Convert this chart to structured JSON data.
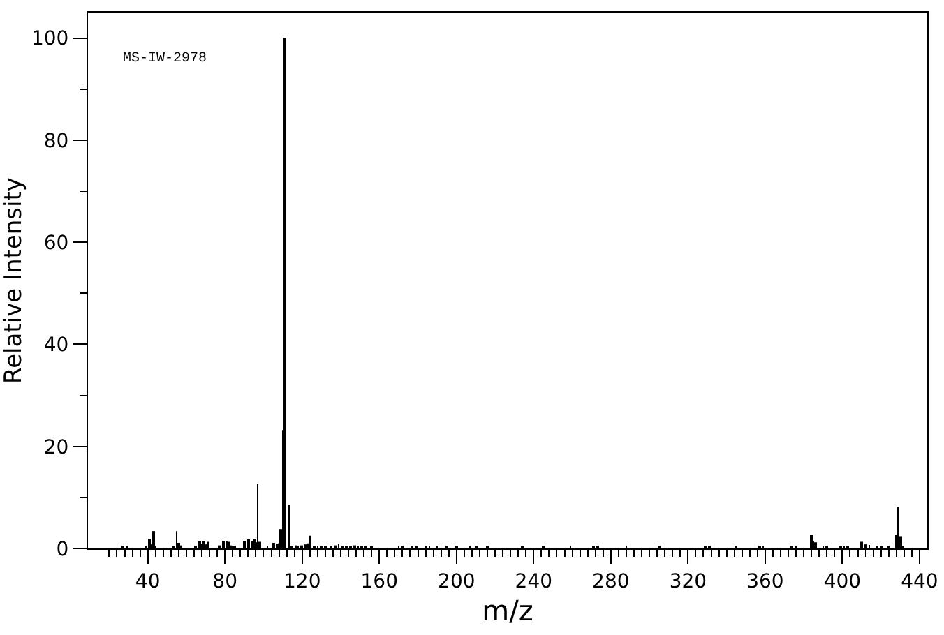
{
  "chart_data": {
    "type": "bar",
    "xlabel": "m/z",
    "ylabel": "Relative Intensity",
    "annotations": [
      "MS-IW-2978"
    ],
    "color": "#000000",
    "x": [
      27,
      29,
      39,
      41,
      42,
      43,
      44,
      53,
      55,
      56,
      57,
      65,
      67,
      68,
      69,
      70,
      71,
      77,
      79,
      81,
      82,
      83,
      84,
      85,
      90,
      92,
      94,
      95,
      96,
      97,
      98,
      102,
      105,
      107,
      108,
      109,
      110,
      111,
      113,
      114,
      115,
      117,
      118,
      120,
      122,
      123,
      124,
      126,
      128,
      130,
      132,
      135,
      137,
      139,
      141,
      143,
      145,
      147,
      149,
      151,
      153,
      156,
      170,
      172,
      177,
      179,
      184,
      186,
      190,
      195,
      200,
      207,
      210,
      216,
      234,
      245,
      259,
      271,
      273,
      288,
      305,
      329,
      331,
      345,
      357,
      359,
      374,
      376,
      384,
      385,
      386,
      390,
      392,
      399,
      401,
      403,
      410,
      412,
      414,
      418,
      420,
      424,
      428,
      429,
      430,
      431
    ],
    "values": [
      0.4,
      0.5,
      0.5,
      1.9,
      0.8,
      3.4,
      0.5,
      0.5,
      3.4,
      1.1,
      0.6,
      0.5,
      1.5,
      0.9,
      1.5,
      0.8,
      1.3,
      0.6,
      1.5,
      1.5,
      1.3,
      0.6,
      0.4,
      0.4,
      1.5,
      1.8,
      1.5,
      1.9,
      1.2,
      12.6,
      1.3,
      0.5,
      1.1,
      0.9,
      1.0,
      3.8,
      23.2,
      100,
      8.6,
      0.5,
      0.5,
      0.6,
      0.5,
      0.6,
      0.8,
      1.0,
      2.5,
      0.5,
      0.5,
      0.5,
      0.5,
      0.5,
      0.6,
      0.9,
      0.5,
      0.5,
      0.5,
      0.6,
      0.4,
      0.4,
      0.3,
      0.3,
      0.3,
      0.3,
      0.3,
      0.3,
      0.3,
      0.3,
      0.3,
      0.3,
      0.3,
      0.3,
      0.3,
      0.3,
      0.3,
      0.3,
      0.3,
      0.3,
      0.3,
      0.3,
      0.3,
      0.3,
      0.3,
      0.3,
      0.3,
      0.3,
      0.3,
      0.3,
      2.7,
      1.4,
      1.2,
      0.3,
      0.3,
      0.3,
      0.3,
      0.3,
      1.3,
      0.8,
      0.7,
      0.3,
      0.3,
      0.3,
      2.7,
      8.2,
      2.4,
      0.4
    ],
    "xlim": [
      9,
      444
    ],
    "ylim": [
      0,
      105
    ],
    "xticks": [
      {
        "value": 20,
        "label": null
      },
      {
        "value": 24,
        "label": null
      },
      {
        "value": 28,
        "label": null
      },
      {
        "value": 32,
        "label": null
      },
      {
        "value": 36,
        "label": null
      },
      40,
      {
        "value": 44,
        "label": null
      },
      {
        "value": 48,
        "label": null
      },
      {
        "value": 52,
        "label": null
      },
      {
        "value": 56,
        "label": null
      },
      {
        "value": 60,
        "label": null
      },
      {
        "value": 64,
        "label": null
      },
      {
        "value": 68,
        "label": null
      },
      {
        "value": 72,
        "label": null
      },
      {
        "value": 76,
        "label": null
      },
      80,
      {
        "value": 84,
        "label": null
      },
      {
        "value": 88,
        "label": null
      },
      {
        "value": 92,
        "label": null
      },
      {
        "value": 96,
        "label": null
      },
      {
        "value": 100,
        "label": null
      },
      {
        "value": 104,
        "label": null
      },
      {
        "value": 108,
        "label": null
      },
      {
        "value": 112,
        "label": null
      },
      {
        "value": 116,
        "label": null
      },
      120,
      {
        "value": 124,
        "label": null
      },
      {
        "value": 128,
        "label": null
      },
      {
        "value": 132,
        "label": null
      },
      {
        "value": 136,
        "label": null
      },
      {
        "value": 140,
        "label": null
      },
      {
        "value": 144,
        "label": null
      },
      {
        "value": 148,
        "label": null
      },
      {
        "value": 152,
        "label": null
      },
      {
        "value": 156,
        "label": null
      },
      160,
      {
        "value": 164,
        "label": null
      },
      {
        "value": 168,
        "label": null
      },
      {
        "value": 172,
        "label": null
      },
      {
        "value": 176,
        "label": null
      },
      {
        "value": 180,
        "label": null
      },
      {
        "value": 184,
        "label": null
      },
      {
        "value": 188,
        "label": null
      },
      {
        "value": 192,
        "label": null
      },
      {
        "value": 196,
        "label": null
      },
      200,
      {
        "value": 204,
        "label": null
      },
      {
        "value": 208,
        "label": null
      },
      {
        "value": 212,
        "label": null
      },
      {
        "value": 216,
        "label": null
      },
      {
        "value": 220,
        "label": null
      },
      {
        "value": 224,
        "label": null
      },
      {
        "value": 228,
        "label": null
      },
      {
        "value": 232,
        "label": null
      },
      {
        "value": 236,
        "label": null
      },
      240,
      {
        "value": 244,
        "label": null
      },
      {
        "value": 248,
        "label": null
      },
      {
        "value": 252,
        "label": null
      },
      {
        "value": 256,
        "label": null
      },
      {
        "value": 260,
        "label": null
      },
      {
        "value": 264,
        "label": null
      },
      {
        "value": 268,
        "label": null
      },
      {
        "value": 272,
        "label": null
      },
      {
        "value": 276,
        "label": null
      },
      280,
      {
        "value": 284,
        "label": null
      },
      {
        "value": 288,
        "label": null
      },
      {
        "value": 292,
        "label": null
      },
      {
        "value": 296,
        "label": null
      },
      {
        "value": 300,
        "label": null
      },
      {
        "value": 304,
        "label": null
      },
      {
        "value": 308,
        "label": null
      },
      {
        "value": 312,
        "label": null
      },
      {
        "value": 316,
        "label": null
      },
      320,
      {
        "value": 324,
        "label": null
      },
      {
        "value": 328,
        "label": null
      },
      {
        "value": 332,
        "label": null
      },
      {
        "value": 336,
        "label": null
      },
      {
        "value": 340,
        "label": null
      },
      {
        "value": 344,
        "label": null
      },
      {
        "value": 348,
        "label": null
      },
      {
        "value": 352,
        "label": null
      },
      {
        "value": 356,
        "label": null
      },
      360,
      {
        "value": 364,
        "label": null
      },
      {
        "value": 368,
        "label": null
      },
      {
        "value": 372,
        "label": null
      },
      {
        "value": 376,
        "label": null
      },
      {
        "value": 380,
        "label": null
      },
      {
        "value": 384,
        "label": null
      },
      {
        "value": 388,
        "label": null
      },
      {
        "value": 392,
        "label": null
      },
      {
        "value": 396,
        "label": null
      },
      400,
      {
        "value": 404,
        "label": null
      },
      {
        "value": 408,
        "label": null
      },
      {
        "value": 412,
        "label": null
      },
      {
        "value": 416,
        "label": null
      },
      {
        "value": 420,
        "label": null
      },
      {
        "value": 424,
        "label": null
      },
      {
        "value": 428,
        "label": null
      },
      {
        "value": 432,
        "label": null
      },
      {
        "value": 436,
        "label": null
      },
      440
    ],
    "yticks": [
      0,
      {
        "value": 10,
        "label": null
      },
      20,
      {
        "value": 30,
        "label": null
      },
      40,
      {
        "value": 50,
        "label": null
      },
      60,
      {
        "value": 70,
        "label": null
      },
      80,
      {
        "value": 90,
        "label": null
      },
      100
    ]
  }
}
